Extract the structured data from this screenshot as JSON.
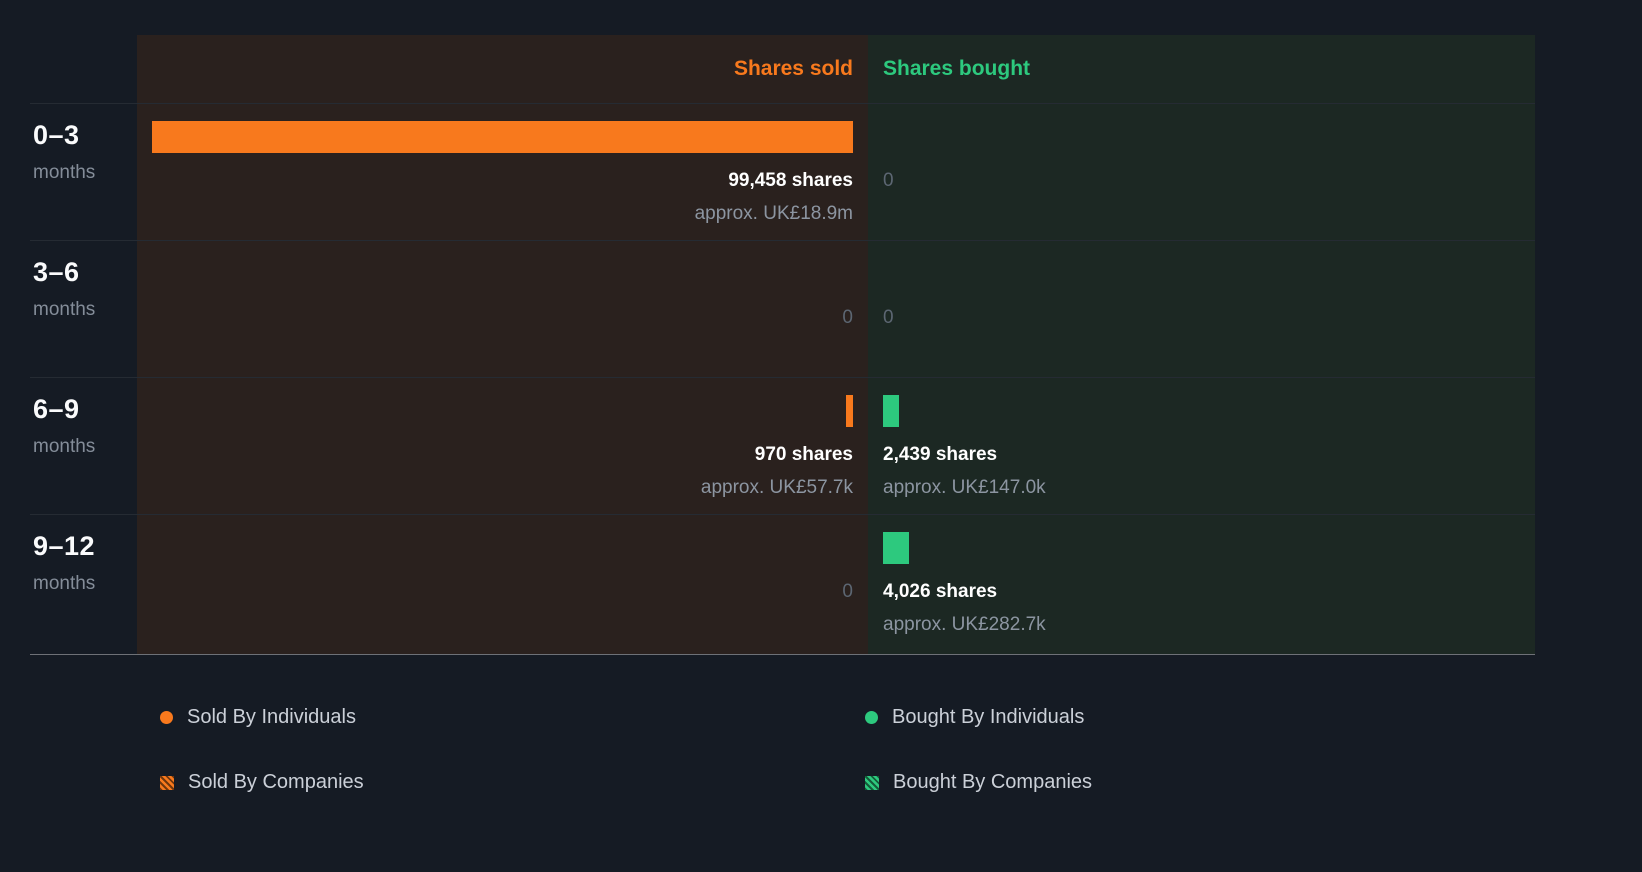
{
  "header": {
    "sold_label": "Shares sold",
    "bought_label": "Shares bought"
  },
  "chart_data": {
    "type": "bar",
    "orientation": "horizontal",
    "categories": [
      "0–3 months",
      "3–6 months",
      "6–9 months",
      "9–12 months"
    ],
    "series": [
      {
        "name": "Shares sold",
        "color": "#F8791D",
        "values": [
          99458,
          0,
          970,
          0
        ],
        "approx": [
          "approx. UK£18.9m",
          "",
          "approx. UK£57.7k",
          ""
        ]
      },
      {
        "name": "Shares bought",
        "color": "#2DC97E",
        "values": [
          0,
          0,
          2439,
          4026
        ],
        "approx": [
          "",
          "",
          "approx. UK£147.0k",
          "approx. UK£282.7k"
        ]
      }
    ],
    "max": 99458,
    "legend_position": "bottom",
    "grid": "row-dividers-only"
  },
  "rows": [
    {
      "period": "0–3",
      "unit": "months",
      "sold": {
        "value": 99458,
        "shares": "99,458 shares",
        "approx": "approx. UK£18.9m"
      },
      "bought": {
        "value": 0,
        "shares": "0",
        "approx": ""
      }
    },
    {
      "period": "3–6",
      "unit": "months",
      "sold": {
        "value": 0,
        "shares": "0",
        "approx": ""
      },
      "bought": {
        "value": 0,
        "shares": "0",
        "approx": ""
      }
    },
    {
      "period": "6–9",
      "unit": "months",
      "sold": {
        "value": 970,
        "shares": "970 shares",
        "approx": "approx. UK£57.7k"
      },
      "bought": {
        "value": 2439,
        "shares": "2,439 shares",
        "approx": "approx. UK£147.0k"
      }
    },
    {
      "period": "9–12",
      "unit": "months",
      "sold": {
        "value": 0,
        "shares": "0",
        "approx": ""
      },
      "bought": {
        "value": 4026,
        "shares": "4,026 shares",
        "approx": "approx. UK£282.7k"
      }
    }
  ],
  "legend": {
    "sold_individuals": "Sold By Individuals",
    "bought_individuals": "Bought By Individuals",
    "sold_companies": "Sold By Companies",
    "bought_companies": "Bought By Companies"
  },
  "colors": {
    "background": "#151B24",
    "sold_accent": "#F8791D",
    "bought_accent": "#2DC97E",
    "sold_panel": "#2A211E",
    "bought_panel": "#1C2823"
  }
}
